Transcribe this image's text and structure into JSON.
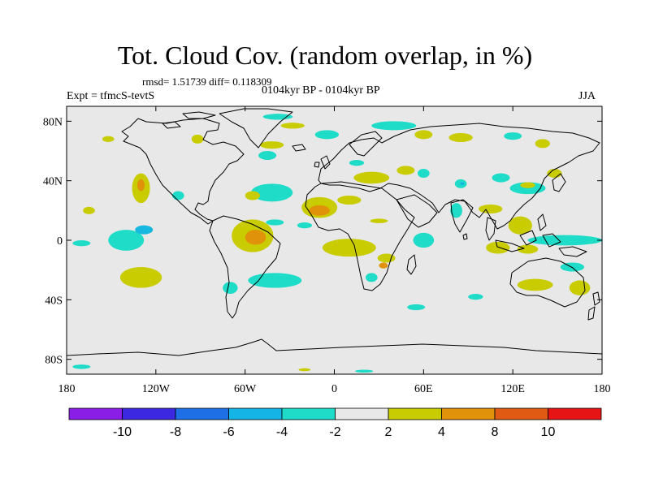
{
  "figure": {
    "title": "Tot. Cloud Cov. (random overlap, in %)",
    "stats_text": "rmsd= 1.51739 diff= 0.118309",
    "expt_text": "Expt = tfmcS-tevtS",
    "period_text": "0104kyr BP - 0104kyr BP",
    "season_text": "JJA"
  },
  "colors": {
    "ocean_land_background": "#e8e8e8",
    "coastline": "#000000",
    "positive_2_4": "#c8cc00",
    "positive_4_8": "#e0920a",
    "negative_-4_-2": "#1edcc8",
    "negative_-6_-4": "#16b8e0"
  },
  "chart_data": {
    "type": "heatmap",
    "projection": "cylindrical-equidistant",
    "x_range": [
      -180,
      180
    ],
    "y_range": [
      -90,
      90
    ],
    "x_ticks": [
      {
        "value": -180,
        "label": "180"
      },
      {
        "value": -120,
        "label": "120W"
      },
      {
        "value": -60,
        "label": "60W"
      },
      {
        "value": 0,
        "label": "0"
      },
      {
        "value": 60,
        "label": "60E"
      },
      {
        "value": 120,
        "label": "120E"
      },
      {
        "value": 180,
        "label": "180"
      }
    ],
    "y_ticks": [
      {
        "value": 80,
        "label": "80N"
      },
      {
        "value": 40,
        "label": "40N"
      },
      {
        "value": 0,
        "label": "0"
      },
      {
        "value": -40,
        "label": "40S"
      },
      {
        "value": -80,
        "label": "80S"
      }
    ],
    "colorbar": {
      "colors": [
        "#8a1ee6",
        "#3c28e0",
        "#1e6ee6",
        "#14b4e6",
        "#1edcc8",
        "#e8e8e8",
        "#c8cc00",
        "#e0920a",
        "#e05a14",
        "#e61414"
      ],
      "labels": [
        "-10",
        "-8",
        "-6",
        "-4",
        "-2",
        "2",
        "4",
        "8",
        "10"
      ]
    },
    "regions": [
      {
        "lon": -165,
        "lat": 20,
        "rx": 4,
        "ry": 2.5,
        "cls": "p1"
      },
      {
        "lon": -170,
        "lat": -2,
        "rx": 6,
        "ry": 2,
        "cls": "n1"
      },
      {
        "lon": -140,
        "lat": 0,
        "rx": 12,
        "ry": 7,
        "cls": "n1"
      },
      {
        "lon": -128,
        "lat": 7,
        "rx": 6,
        "ry": 3,
        "cls": "n2"
      },
      {
        "lon": -130,
        "lat": -25,
        "rx": 14,
        "ry": 7,
        "cls": "p1"
      },
      {
        "lon": -130,
        "lat": 35,
        "rx": 6,
        "ry": 10,
        "cls": "p1"
      },
      {
        "lon": -130,
        "lat": 37,
        "rx": 2.5,
        "ry": 4,
        "cls": "p2"
      },
      {
        "lon": -105,
        "lat": 30,
        "rx": 4,
        "ry": 3,
        "cls": "n1"
      },
      {
        "lon": -152,
        "lat": 68,
        "rx": 4,
        "ry": 2,
        "cls": "p1"
      },
      {
        "lon": -92,
        "lat": 68,
        "rx": 4,
        "ry": 3,
        "cls": "p1"
      },
      {
        "lon": -55,
        "lat": 3,
        "rx": 14,
        "ry": 11,
        "cls": "p1"
      },
      {
        "lon": -53,
        "lat": 2,
        "rx": 7,
        "ry": 5,
        "cls": "p2"
      },
      {
        "lon": -40,
        "lat": -27,
        "rx": 18,
        "ry": 5,
        "cls": "n1"
      },
      {
        "lon": -70,
        "lat": -32,
        "rx": 5,
        "ry": 4,
        "cls": "n1"
      },
      {
        "lon": -40,
        "lat": 12,
        "rx": 6,
        "ry": 2,
        "cls": "n1"
      },
      {
        "lon": -42,
        "lat": 32,
        "rx": 14,
        "ry": 6,
        "cls": "n1"
      },
      {
        "lon": -55,
        "lat": 30,
        "rx": 5,
        "ry": 3,
        "cls": "p1"
      },
      {
        "lon": -45,
        "lat": 57,
        "rx": 6,
        "ry": 3,
        "cls": "n1"
      },
      {
        "lon": -42,
        "lat": 64,
        "rx": 8,
        "ry": 2.5,
        "cls": "p1"
      },
      {
        "lon": -38,
        "lat": 83,
        "rx": 10,
        "ry": 2,
        "cls": "n1"
      },
      {
        "lon": -28,
        "lat": 77,
        "rx": 8,
        "ry": 2,
        "cls": "p1"
      },
      {
        "lon": -5,
        "lat": 71,
        "rx": 8,
        "ry": 3,
        "cls": "n1"
      },
      {
        "lon": 40,
        "lat": 77,
        "rx": 15,
        "ry": 3,
        "cls": "n1"
      },
      {
        "lon": 60,
        "lat": 71,
        "rx": 6,
        "ry": 3,
        "cls": "p1"
      },
      {
        "lon": 85,
        "lat": 69,
        "rx": 8,
        "ry": 3,
        "cls": "p1"
      },
      {
        "lon": 120,
        "lat": 70,
        "rx": 6,
        "ry": 2.5,
        "cls": "n1"
      },
      {
        "lon": 140,
        "lat": 65,
        "rx": 5,
        "ry": 3,
        "cls": "p1"
      },
      {
        "lon": -10,
        "lat": 22,
        "rx": 12,
        "ry": 7,
        "cls": "p1"
      },
      {
        "lon": -10,
        "lat": 20,
        "rx": 7,
        "ry": 3.5,
        "cls": "p2"
      },
      {
        "lon": 10,
        "lat": 27,
        "rx": 8,
        "ry": 3,
        "cls": "p1"
      },
      {
        "lon": -20,
        "lat": 10,
        "rx": 5,
        "ry": 2,
        "cls": "n1"
      },
      {
        "lon": 30,
        "lat": 13,
        "rx": 6,
        "ry": 1.5,
        "cls": "p1"
      },
      {
        "lon": 25,
        "lat": 42,
        "rx": 12,
        "ry": 4,
        "cls": "p1"
      },
      {
        "lon": 48,
        "lat": 47,
        "rx": 6,
        "ry": 3,
        "cls": "p1"
      },
      {
        "lon": 60,
        "lat": 45,
        "rx": 4,
        "ry": 3,
        "cls": "n1"
      },
      {
        "lon": 15,
        "lat": 52,
        "rx": 5,
        "ry": 2,
        "cls": "n1"
      },
      {
        "lon": 10,
        "lat": -5,
        "rx": 18,
        "ry": 6,
        "cls": "p1"
      },
      {
        "lon": 35,
        "lat": -12,
        "rx": 6,
        "ry": 3,
        "cls": "p1"
      },
      {
        "lon": 33,
        "lat": -17,
        "rx": 3,
        "ry": 2,
        "cls": "p2"
      },
      {
        "lon": 25,
        "lat": -25,
        "rx": 4,
        "ry": 3,
        "cls": "n1"
      },
      {
        "lon": 60,
        "lat": 0,
        "rx": 7,
        "ry": 5,
        "cls": "n1"
      },
      {
        "lon": 82,
        "lat": 20,
        "rx": 4,
        "ry": 5,
        "cls": "n1"
      },
      {
        "lon": 85,
        "lat": 38,
        "rx": 4,
        "ry": 3,
        "cls": "n1"
      },
      {
        "lon": 86,
        "lat": 38,
        "rx": 1.5,
        "ry": 1,
        "cls": "n2"
      },
      {
        "lon": 105,
        "lat": 21,
        "rx": 8,
        "ry": 3,
        "cls": "p1"
      },
      {
        "lon": 125,
        "lat": 10,
        "rx": 8,
        "ry": 6,
        "cls": "p1"
      },
      {
        "lon": 130,
        "lat": 35,
        "rx": 12,
        "ry": 4,
        "cls": "n1"
      },
      {
        "lon": 130,
        "lat": 37,
        "rx": 5,
        "ry": 2,
        "cls": "p1"
      },
      {
        "lon": 112,
        "lat": 42,
        "rx": 6,
        "ry": 3,
        "cls": "n1"
      },
      {
        "lon": 148,
        "lat": 45,
        "rx": 5,
        "ry": 3,
        "cls": "p1"
      },
      {
        "lon": 155,
        "lat": 0,
        "rx": 25,
        "ry": 3.5,
        "cls": "n1"
      },
      {
        "lon": 110,
        "lat": -5,
        "rx": 8,
        "ry": 4,
        "cls": "p1"
      },
      {
        "lon": 130,
        "lat": -6,
        "rx": 7,
        "ry": 3,
        "cls": "p1"
      },
      {
        "lon": 135,
        "lat": -30,
        "rx": 12,
        "ry": 4,
        "cls": "p1"
      },
      {
        "lon": 165,
        "lat": -32,
        "rx": 7,
        "ry": 5,
        "cls": "p1"
      },
      {
        "lon": 160,
        "lat": -18,
        "rx": 8,
        "ry": 3,
        "cls": "n1"
      },
      {
        "lon": 95,
        "lat": -38,
        "rx": 5,
        "ry": 2,
        "cls": "n1"
      },
      {
        "lon": 55,
        "lat": -45,
        "rx": 6,
        "ry": 2,
        "cls": "n1"
      },
      {
        "lon": -170,
        "lat": -85,
        "rx": 6,
        "ry": 1.5,
        "cls": "n1"
      },
      {
        "lon": 20,
        "lat": -88,
        "rx": 6,
        "ry": 1,
        "cls": "n1"
      },
      {
        "lon": -20,
        "lat": -87,
        "rx": 4,
        "ry": 1,
        "cls": "p1"
      }
    ]
  }
}
